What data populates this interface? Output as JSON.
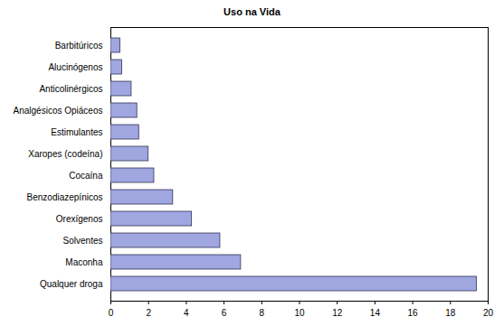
{
  "chart_data": {
    "type": "bar",
    "title": "Uso na Vida",
    "orientation": "horizontal",
    "categories": [
      "Barbitúricos",
      "Alucinógenos",
      "Anticolinérgicos",
      "Analgésicos Opiáceos",
      "Estimulantes",
      "Xaropes (codeína)",
      "Cocaína",
      "Benzodiazepínicos",
      "Orexígenos",
      "Solventes",
      "Maconha",
      "Qualquer droga"
    ],
    "values": [
      0.5,
      0.6,
      1.1,
      1.4,
      1.5,
      2.0,
      2.3,
      3.3,
      4.3,
      5.8,
      6.9,
      19.4
    ],
    "color": "#9fa6e0",
    "xlim": [
      0,
      20
    ],
    "xticks": [
      0,
      2,
      4,
      6,
      8,
      10,
      12,
      14,
      16,
      18,
      20
    ],
    "grid": false
  }
}
